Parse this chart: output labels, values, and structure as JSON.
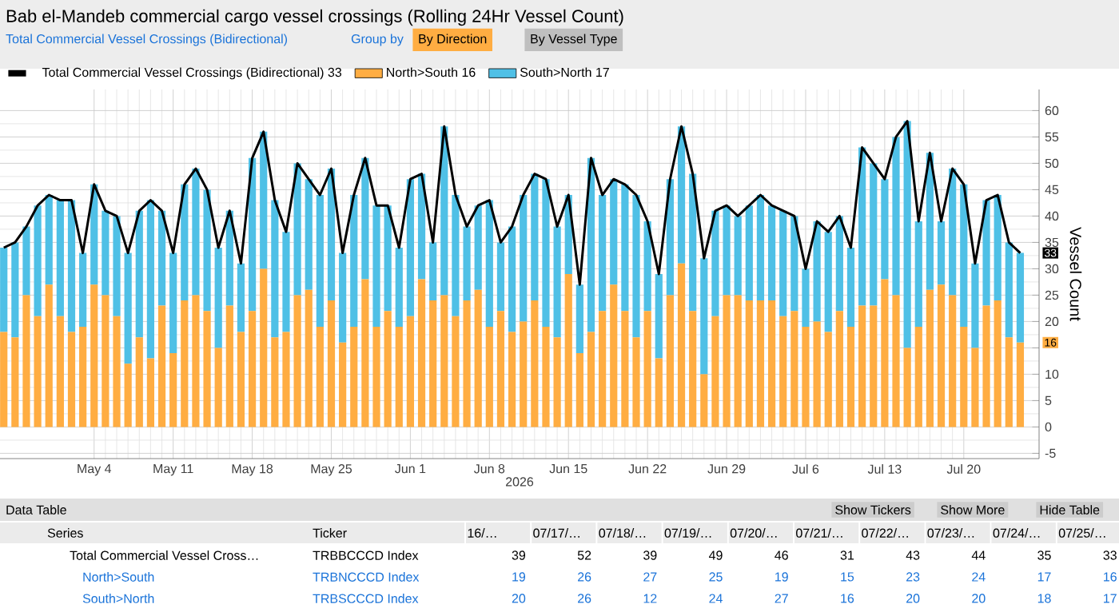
{
  "chart_data": {
    "type": "bar",
    "stacked": true,
    "title": "Bab el-Mandeb commercial cargo vessel crossings (Rolling 24Hr Vessel Count)",
    "subtitle": "Total Commercial Vessel Crossings (Bidirectional)",
    "xlabel": "2026",
    "ylabel": "Vessel Count",
    "x": [
      "2026-04-26",
      "2026-04-27",
      "2026-04-28",
      "2026-04-29",
      "2026-04-30",
      "2026-05-01",
      "2026-05-02",
      "2026-05-03",
      "2026-05-04",
      "2026-05-05",
      "2026-05-06",
      "2026-05-07",
      "2026-05-08",
      "2026-05-09",
      "2026-05-10",
      "2026-05-11",
      "2026-05-12",
      "2026-05-13",
      "2026-05-14",
      "2026-05-15",
      "2026-05-16",
      "2026-05-17",
      "2026-05-18",
      "2026-05-19",
      "2026-05-20",
      "2026-05-21",
      "2026-05-22",
      "2026-05-23",
      "2026-05-24",
      "2026-05-25",
      "2026-05-26",
      "2026-05-27",
      "2026-05-28",
      "2026-05-29",
      "2026-05-30",
      "2026-05-31",
      "2026-06-01",
      "2026-06-02",
      "2026-06-03",
      "2026-06-04",
      "2026-06-05",
      "2026-06-06",
      "2026-06-07",
      "2026-06-08",
      "2026-06-09",
      "2026-06-10",
      "2026-06-11",
      "2026-06-12",
      "2026-06-13",
      "2026-06-14",
      "2026-06-15",
      "2026-06-16",
      "2026-06-17",
      "2026-06-18",
      "2026-06-19",
      "2026-06-20",
      "2026-06-21",
      "2026-06-22",
      "2026-06-23",
      "2026-06-24",
      "2026-06-25",
      "2026-06-26",
      "2026-06-27",
      "2026-06-28",
      "2026-06-29",
      "2026-06-30",
      "2026-07-01",
      "2026-07-02",
      "2026-07-03",
      "2026-07-04",
      "2026-07-05",
      "2026-07-06",
      "2026-07-07",
      "2026-07-08",
      "2026-07-09",
      "2026-07-10",
      "2026-07-11",
      "2026-07-12",
      "2026-07-13",
      "2026-07-14",
      "2026-07-15",
      "2026-07-16",
      "2026-07-17",
      "2026-07-18",
      "2026-07-19",
      "2026-07-20",
      "2026-07-21",
      "2026-07-22",
      "2026-07-23",
      "2026-07-24",
      "2026-07-25"
    ],
    "series": [
      {
        "name": "Total Commercial Vessel Crossings (Bidirectional) 33",
        "type": "line",
        "color": "#000000",
        "values": [
          34,
          35,
          38,
          42,
          44,
          43,
          43,
          33,
          46,
          41,
          40,
          33,
          41,
          43,
          41,
          33,
          46,
          49,
          45,
          34,
          41,
          31,
          51,
          56,
          43,
          37,
          50,
          47,
          44,
          49,
          33,
          44,
          51,
          42,
          42,
          34,
          47,
          48,
          35,
          57,
          44,
          38,
          42,
          43,
          35,
          38,
          44,
          48,
          47,
          38,
          44,
          27,
          51,
          44,
          47,
          46,
          44,
          39,
          29,
          47,
          57,
          48,
          32,
          41,
          42,
          40,
          42,
          44,
          42,
          41,
          40,
          30,
          39,
          37,
          40,
          34,
          53,
          50,
          47,
          55,
          58,
          39,
          52,
          39,
          49,
          46,
          31,
          43,
          44,
          35,
          33
        ]
      },
      {
        "name": "North>South 16",
        "color": "#ffad42",
        "values": [
          18,
          17,
          25,
          21,
          27,
          21,
          18,
          19,
          27,
          25,
          21,
          12,
          17,
          13,
          23,
          14,
          24,
          25,
          22,
          15,
          23,
          18,
          22,
          30,
          17,
          18,
          25,
          26,
          19,
          24,
          16,
          19,
          28,
          19,
          22,
          19,
          21,
          28,
          24,
          25,
          21,
          24,
          26,
          19,
          22,
          18,
          20,
          24,
          19,
          17,
          29,
          14,
          18,
          22,
          27,
          22,
          17,
          22,
          13,
          25,
          31,
          22,
          10,
          21,
          25,
          25,
          24,
          24,
          24,
          21,
          22,
          19,
          20,
          18,
          22,
          19,
          23,
          23,
          28,
          25,
          15,
          19,
          26,
          27,
          25,
          19,
          15,
          23,
          24,
          17,
          16
        ]
      },
      {
        "name": "South>North 17",
        "color": "#4fc0e6",
        "values": [
          16,
          18,
          13,
          21,
          17,
          22,
          25,
          14,
          19,
          16,
          19,
          21,
          24,
          30,
          18,
          19,
          22,
          24,
          23,
          19,
          18,
          13,
          29,
          26,
          26,
          19,
          25,
          21,
          25,
          25,
          17,
          25,
          23,
          23,
          20,
          15,
          26,
          20,
          11,
          32,
          23,
          14,
          16,
          24,
          13,
          20,
          24,
          24,
          28,
          21,
          15,
          13,
          33,
          22,
          20,
          24,
          27,
          17,
          16,
          22,
          26,
          26,
          22,
          20,
          17,
          15,
          18,
          20,
          18,
          20,
          18,
          11,
          19,
          19,
          18,
          15,
          30,
          27,
          19,
          30,
          43,
          20,
          26,
          12,
          24,
          27,
          16,
          20,
          20,
          18,
          17
        ]
      }
    ],
    "xlim": [
      "2026-04-25T16:00",
      "2026-07-26T16:00"
    ],
    "xticks": [
      {
        "value": "2026-05-04",
        "label": "May 4"
      },
      {
        "value": "2026-05-11",
        "label": "May 11"
      },
      {
        "value": "2026-05-18",
        "label": "May 18"
      },
      {
        "value": "2026-05-25",
        "label": "May 25"
      },
      {
        "value": "2026-06-01",
        "label": "Jun 1"
      },
      {
        "value": "2026-06-08",
        "label": "Jun 8"
      },
      {
        "value": "2026-06-15",
        "label": "Jun 15"
      },
      {
        "value": "2026-06-22",
        "label": "Jun 22"
      },
      {
        "value": "2026-06-29",
        "label": "Jun 29"
      },
      {
        "value": "2026-07-06",
        "label": "Jul 6"
      },
      {
        "value": "2026-07-13",
        "label": "Jul 13"
      },
      {
        "value": "2026-07-20",
        "label": "Jul 20"
      }
    ],
    "ylim": [
      -6,
      64
    ],
    "yticks": [
      {
        "value": -5,
        "label": "-5"
      },
      0,
      5,
      10,
      {
        "value": 15,
        "label": null
      },
      20,
      25,
      30,
      35,
      40,
      45,
      50,
      55,
      60
    ],
    "grid": true,
    "legend": "top left",
    "marker": "none",
    "line_style": "solid",
    "annotations": [
      "Group by",
      "By Direction",
      "By Vessel Type",
      "Data Table",
      "Show Tickers",
      "Show More",
      "Hide Table",
      "Series",
      "Ticker",
      "16/…",
      "07/17/…",
      "07/18/…",
      "07/19/…",
      "07/20/…",
      "07/21/…",
      "07/22/…",
      "07/23/…",
      "07/24/…",
      "07/25/…",
      "Total Commercial Vessel Cross…",
      "TRBBCCCD Index",
      "North>South",
      "TRBNCCCD Index",
      "South>North",
      "TRBSCCCD Index",
      {
        "text": "33",
        "x": "2026-07-25",
        "y": 33
      },
      {
        "text": "16",
        "x": "2026-07-25",
        "y": 16
      },
      "39",
      "52",
      "39",
      "49",
      "46",
      "31",
      "43",
      "44",
      "35",
      "33",
      "19",
      "26",
      "27",
      "25",
      "19",
      "15",
      "23",
      "24",
      "17",
      "16",
      "20",
      "26",
      "12",
      "24",
      "27",
      "16",
      "20",
      "20",
      "18",
      "17"
    ]
  }
}
